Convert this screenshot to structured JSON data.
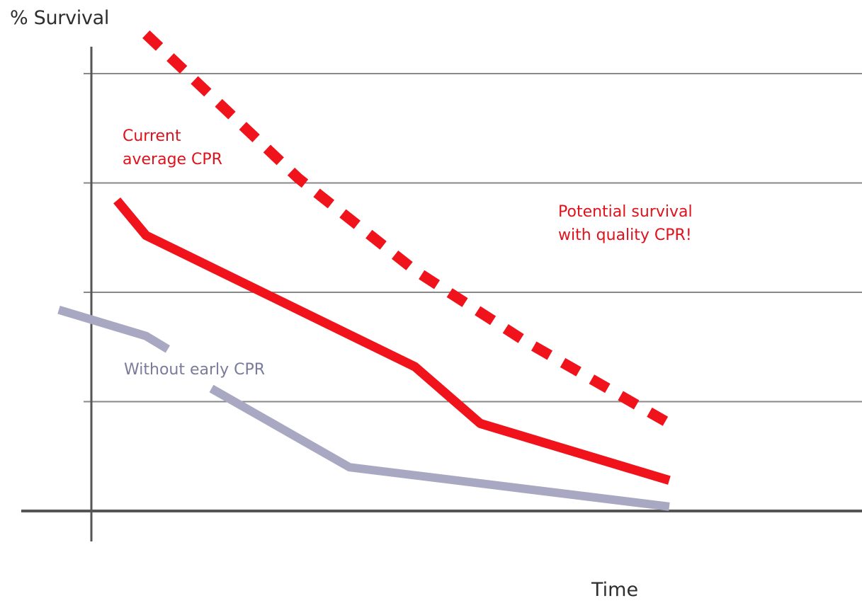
{
  "chart_data": {
    "type": "line",
    "title": "",
    "xlabel": "Time",
    "ylabel": "% Survival",
    "xlim": [
      0,
      100
    ],
    "ylim": [
      0,
      100
    ],
    "grid": true,
    "gridlines_y": [
      25,
      50,
      75,
      100
    ],
    "x_ticks": [],
    "y_ticks": [],
    "colors": {
      "potential": "#f0131c",
      "current": "#f0131c",
      "without": "#a9a8c2",
      "grid": "#888888",
      "axis": "#555555"
    },
    "series": [
      {
        "key": "potential",
        "style": "dashed",
        "points": [
          [
            16,
            109
          ],
          [
            37,
            76
          ],
          [
            53,
            55
          ],
          [
            68,
            39
          ],
          [
            88,
            20
          ]
        ]
      },
      {
        "key": "current",
        "style": "solid",
        "points": [
          [
            12,
            71
          ],
          [
            16,
            63
          ],
          [
            53,
            33
          ],
          [
            62,
            20
          ],
          [
            88,
            7
          ]
        ]
      },
      {
        "key": "without",
        "style": "solid",
        "segments": [
          [
            [
              4,
              46
            ],
            [
              16,
              40
            ],
            [
              19,
              37
            ]
          ],
          [
            [
              25,
              28
            ],
            [
              44,
              10
            ],
            [
              88,
              1
            ]
          ]
        ]
      }
    ],
    "annotations": [
      {
        "key": "current",
        "lines": [
          "Current",
          "average CPR"
        ]
      },
      {
        "key": "potential",
        "lines": [
          "Potential survival",
          "with quality CPR!"
        ]
      },
      {
        "key": "without",
        "lines": [
          "Without early CPR"
        ]
      }
    ]
  }
}
